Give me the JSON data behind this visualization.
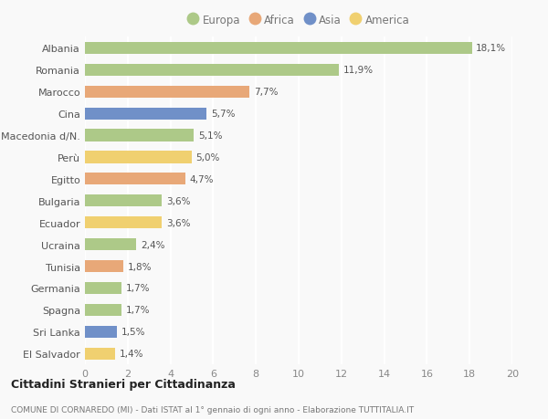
{
  "categories": [
    "Albania",
    "Romania",
    "Marocco",
    "Cina",
    "Macedonia d/N.",
    "Perù",
    "Egitto",
    "Bulgaria",
    "Ecuador",
    "Ucraina",
    "Tunisia",
    "Germania",
    "Spagna",
    "Sri Lanka",
    "El Salvador"
  ],
  "values": [
    18.1,
    11.9,
    7.7,
    5.7,
    5.1,
    5.0,
    4.7,
    3.6,
    3.6,
    2.4,
    1.8,
    1.7,
    1.7,
    1.5,
    1.4
  ],
  "labels": [
    "18,1%",
    "11,9%",
    "7,7%",
    "5,7%",
    "5,1%",
    "5,0%",
    "4,7%",
    "3,6%",
    "3,6%",
    "2,4%",
    "1,8%",
    "1,7%",
    "1,7%",
    "1,5%",
    "1,4%"
  ],
  "continents": [
    "Europa",
    "Europa",
    "Africa",
    "Asia",
    "Europa",
    "America",
    "Africa",
    "Europa",
    "America",
    "Europa",
    "Africa",
    "Europa",
    "Europa",
    "Asia",
    "America"
  ],
  "colors": {
    "Europa": "#adc988",
    "Africa": "#e8a878",
    "Asia": "#7090c8",
    "America": "#f0d070"
  },
  "legend_order": [
    "Europa",
    "Africa",
    "Asia",
    "America"
  ],
  "xlim": [
    0,
    20
  ],
  "xticks": [
    0,
    2,
    4,
    6,
    8,
    10,
    12,
    14,
    16,
    18,
    20
  ],
  "title": "Cittadini Stranieri per Cittadinanza",
  "subtitle": "COMUNE DI CORNAREDO (MI) - Dati ISTAT al 1° gennaio di ogni anno - Elaborazione TUTTITALIA.IT",
  "background_color": "#f9f9f9",
  "grid_color": "#ffffff",
  "bar_height": 0.55
}
